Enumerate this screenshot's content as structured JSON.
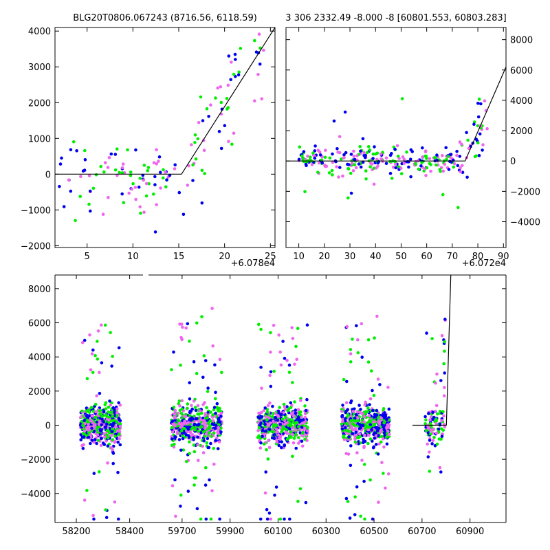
{
  "chart_data": [
    {
      "type": "scatter",
      "title": "BLG20T0806.067243 (8716.56, 6118.59)",
      "xlim": [
        1.5,
        25.5
      ],
      "ylim": [
        -2050,
        4100
      ],
      "xticks": [
        5,
        10,
        15,
        20,
        25
      ],
      "yticks": [
        -2000,
        -1000,
        0,
        1000,
        2000,
        3000,
        4000
      ],
      "x_offset_label": "+6.078e4",
      "y_axis_side": "left",
      "colors": [
        "#0000ee",
        "#00ee00",
        "#ee66ee"
      ],
      "model": {
        "x": [
          1.5,
          15.3,
          25.5
        ],
        "y": [
          0,
          0,
          4100
        ]
      }
    },
    {
      "type": "scatter",
      "title": "3 306 2332.49 -8.000 -8 [60801.553, 60803.283]",
      "xlim": [
        5,
        91
      ],
      "ylim": [
        -5700,
        8800
      ],
      "xticks": [
        10,
        20,
        30,
        40,
        50,
        60,
        70,
        80,
        90
      ],
      "yticks": [
        -4000,
        -2000,
        0,
        2000,
        4000,
        6000,
        8000
      ],
      "x_offset_label": "+6.072e4",
      "y_axis_side": "right",
      "colors": [
        "#0000ee",
        "#00ee00",
        "#ee66ee"
      ],
      "model": {
        "x": [
          5,
          75,
          91
        ],
        "y": [
          0,
          0,
          6200
        ]
      }
    },
    {
      "type": "scatter",
      "title": "",
      "xlim_segments": [
        [
          58120,
          58450
        ],
        [
          59560,
          61050
        ]
      ],
      "ylim": [
        -5700,
        8800
      ],
      "xticks": [
        58200,
        58400,
        59700,
        59900,
        60100,
        60300,
        60500,
        60700,
        60900
      ],
      "yticks": [
        -4000,
        -2000,
        0,
        2000,
        4000,
        6000,
        8000
      ],
      "y_axis_side": "left",
      "colors": [
        "#0000ee",
        "#00ee00",
        "#ee66ee"
      ],
      "seasons": [
        {
          "center": 58290,
          "half_width": 75
        },
        {
          "center": 59760,
          "half_width": 105
        },
        {
          "center": 60120,
          "half_width": 105
        },
        {
          "center": 60465,
          "half_width": 100
        },
        {
          "center": 60755,
          "half_width": 42
        }
      ],
      "model": {
        "x": [
          60660,
          60801.5,
          60820
        ],
        "y": [
          0,
          0,
          8800
        ]
      }
    }
  ]
}
